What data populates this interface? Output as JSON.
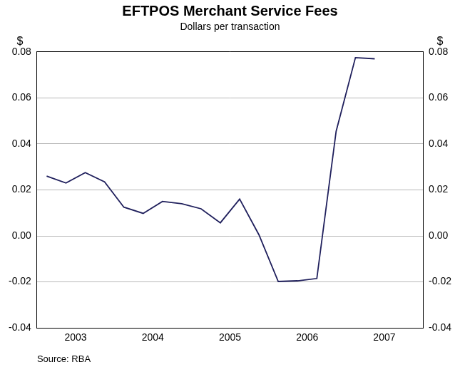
{
  "chart_data": {
    "type": "line",
    "title": "EFTPOS Merchant Service Fees",
    "subtitle": "Dollars per transaction",
    "ylabel": "$",
    "y2label": "$",
    "note": "Source: RBA",
    "categories": [
      null,
      "2003",
      null,
      null,
      null,
      "2004",
      null,
      null,
      null,
      "2005",
      null,
      null,
      null,
      "2006",
      null,
      null,
      null,
      "2007",
      null,
      null
    ],
    "values": [
      0.026,
      0.023,
      0.0275,
      0.0235,
      0.0125,
      0.0098,
      0.015,
      0.014,
      0.0118,
      0.0057,
      0.016,
      0.0005,
      -0.0198,
      -0.0195,
      -0.0185,
      0.0455,
      0.0775,
      0.077,
      null,
      null
    ],
    "color": "#1f1f5c",
    "ylim": [
      -0.04,
      0.08
    ],
    "yticks": [
      -0.04,
      -0.02,
      {
        "value": 0,
        "label": "0.00"
      },
      0.02,
      0.04,
      0.06,
      0.08
    ],
    "y2lim": [
      -0.04,
      0.08
    ],
    "y2ticks": [
      -0.04,
      -0.02,
      {
        "value": 0,
        "label": "0.00"
      },
      0.02,
      0.04,
      0.06,
      0.08
    ],
    "grid": true,
    "marker": "none",
    "line_style": "solid"
  }
}
